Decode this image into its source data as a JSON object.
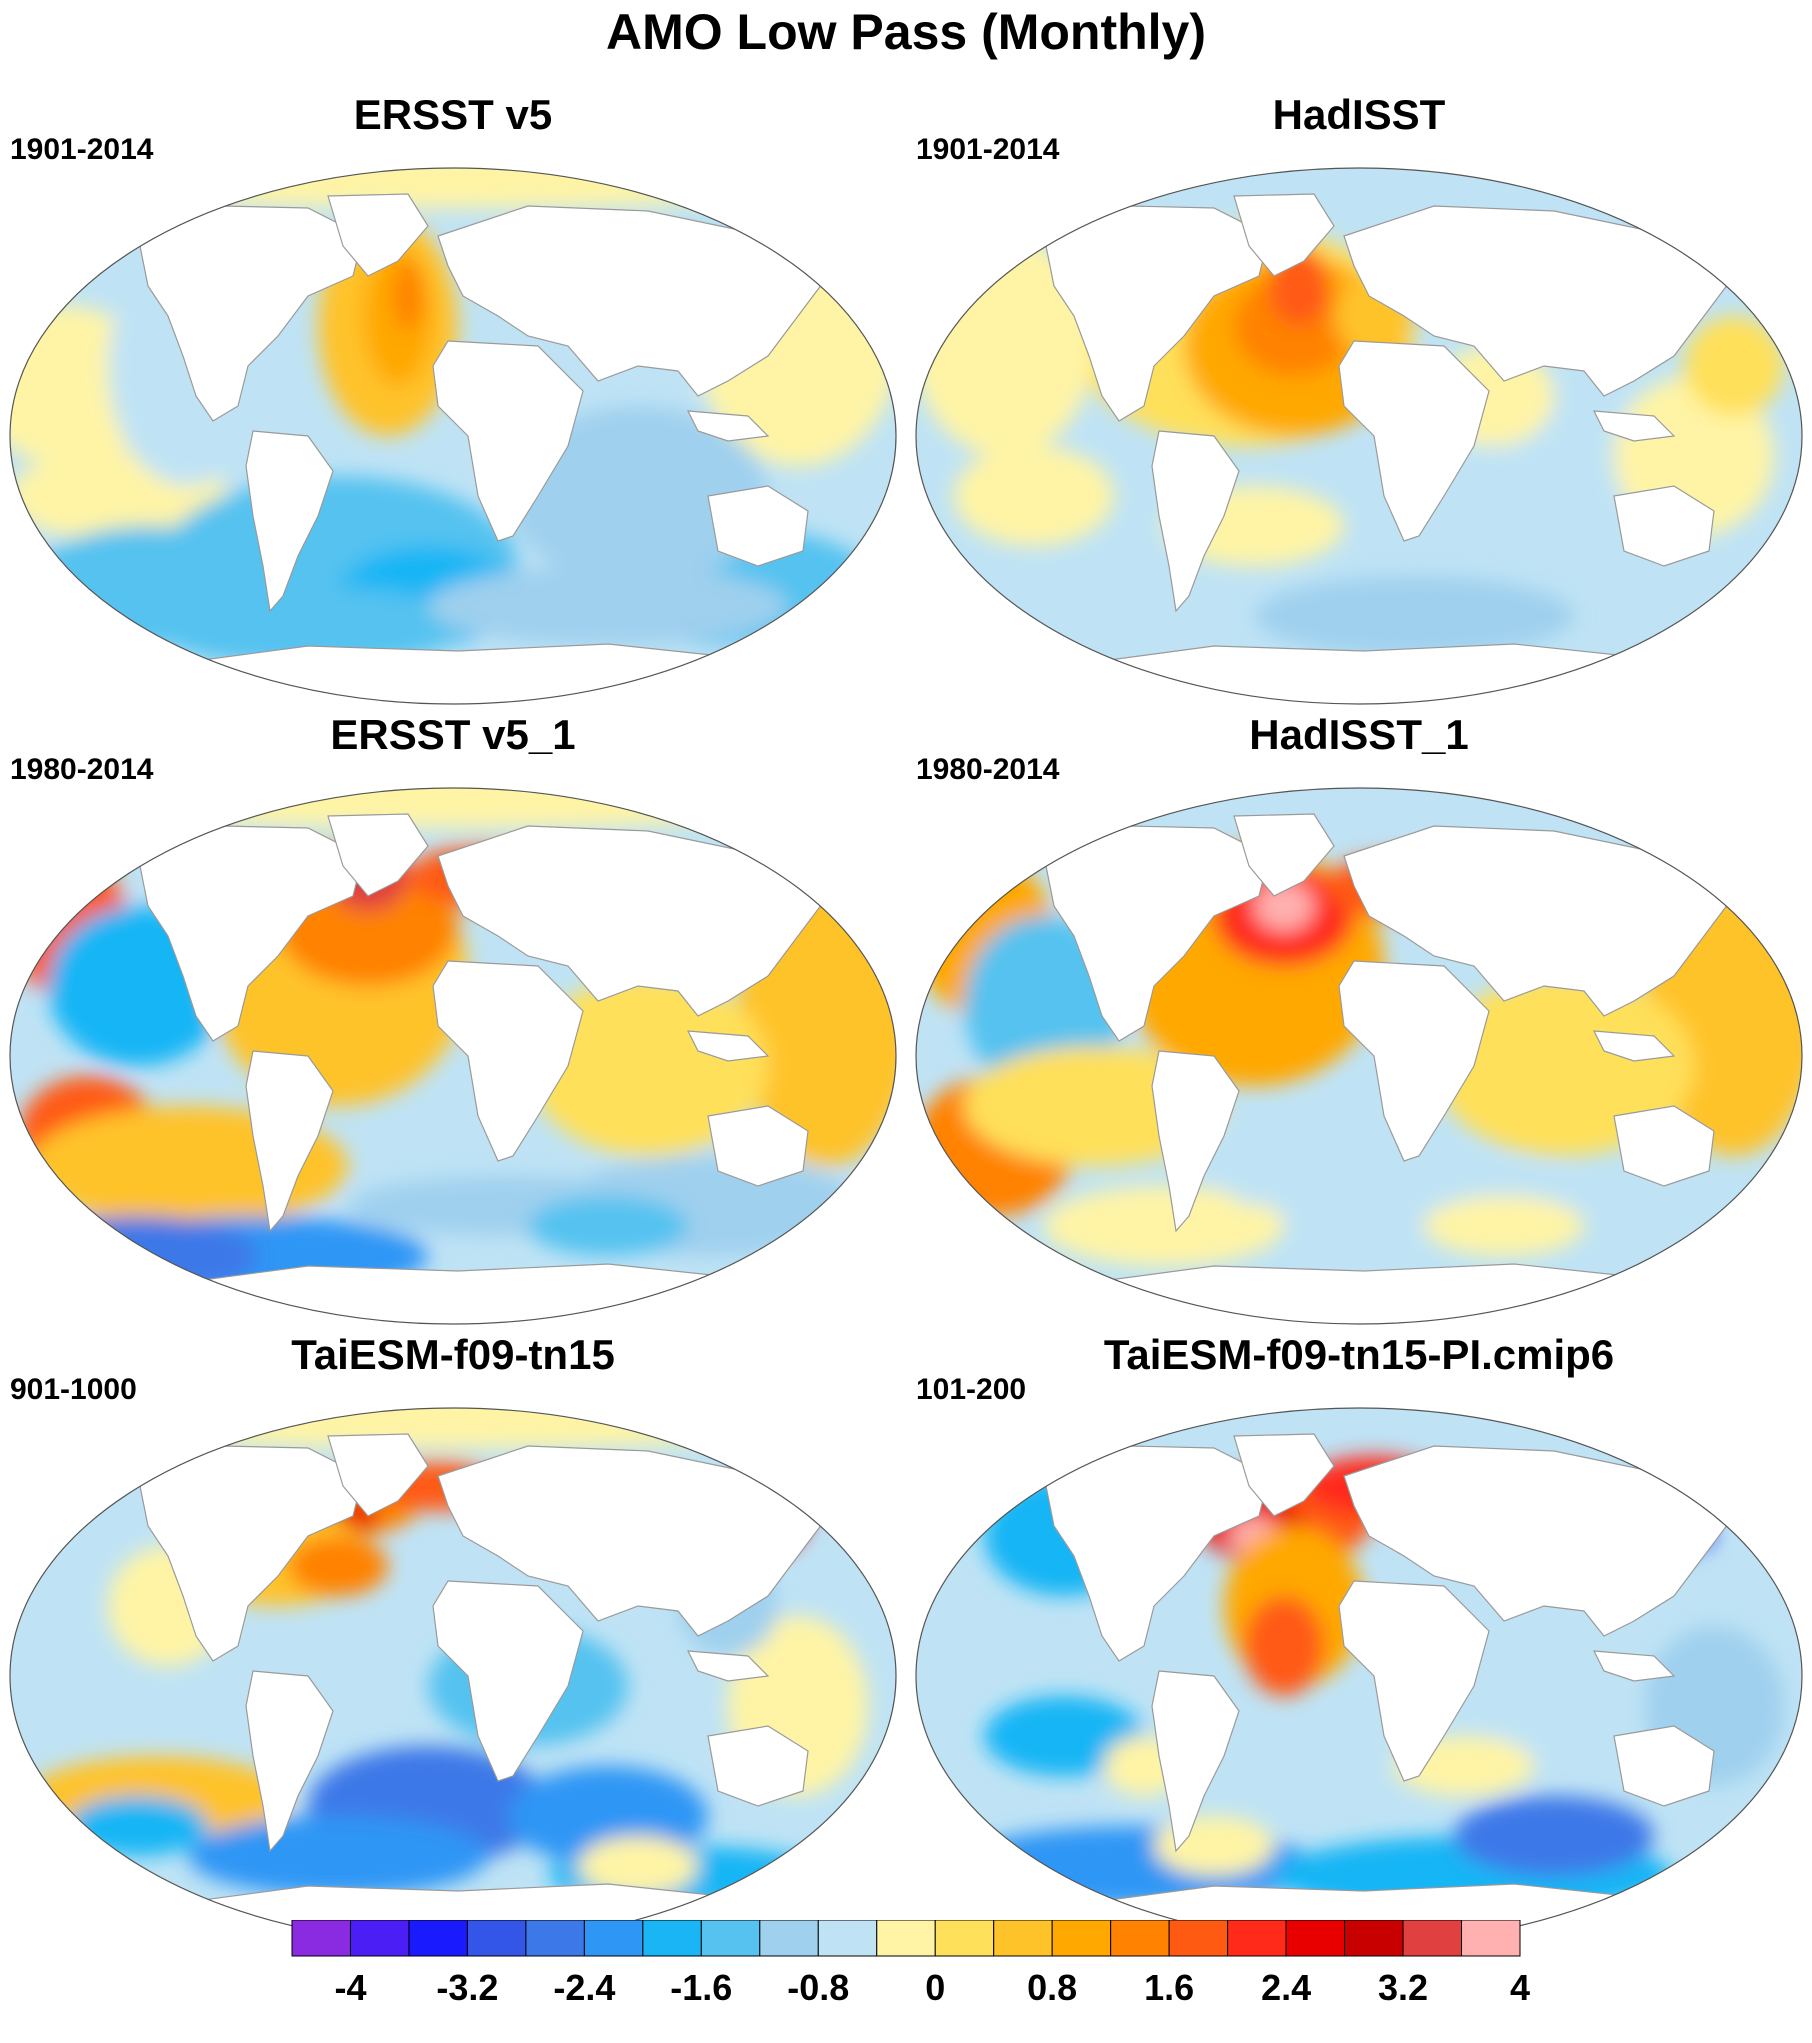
{
  "figure": {
    "title": "AMO Low Pass (Monthly)"
  },
  "panels": [
    {
      "title": "ERSST v5",
      "period": "1901-2014",
      "pattern": "ersst"
    },
    {
      "title": "HadISST",
      "period": "1901-2014",
      "pattern": "hadisst"
    },
    {
      "title": "ERSST v5_1",
      "period": "1980-2014",
      "pattern": "ersst1"
    },
    {
      "title": "HadISST_1",
      "period": "1980-2014",
      "pattern": "hadisst1"
    },
    {
      "title": "TaiESM-f09-tn15",
      "period": "901-1000",
      "pattern": "taiesm"
    },
    {
      "title": "TaiESM-f09-tn15-PI.cmip6",
      "period": "101-200",
      "pattern": "taiesm_pi"
    }
  ],
  "colorbar": {
    "colors": [
      "#8a2be2",
      "#4a1ef5",
      "#1a1aff",
      "#3355e8",
      "#3c78e8",
      "#2e96f5",
      "#19b5f5",
      "#55c2f0",
      "#9fd0ee",
      "#bfe3f5",
      "#fff4a6",
      "#ffe05a",
      "#ffc32a",
      "#ffa800",
      "#ff8200",
      "#ff5a12",
      "#ff2a1a",
      "#e80000",
      "#c80000",
      "#e04040",
      "#ffb0b0"
    ],
    "ticks": [
      "-4",
      "-3.2",
      "-2.4",
      "-1.6",
      "-0.8",
      "0",
      "0.8",
      "1.6",
      "2.4",
      "3.2",
      "4"
    ]
  }
}
